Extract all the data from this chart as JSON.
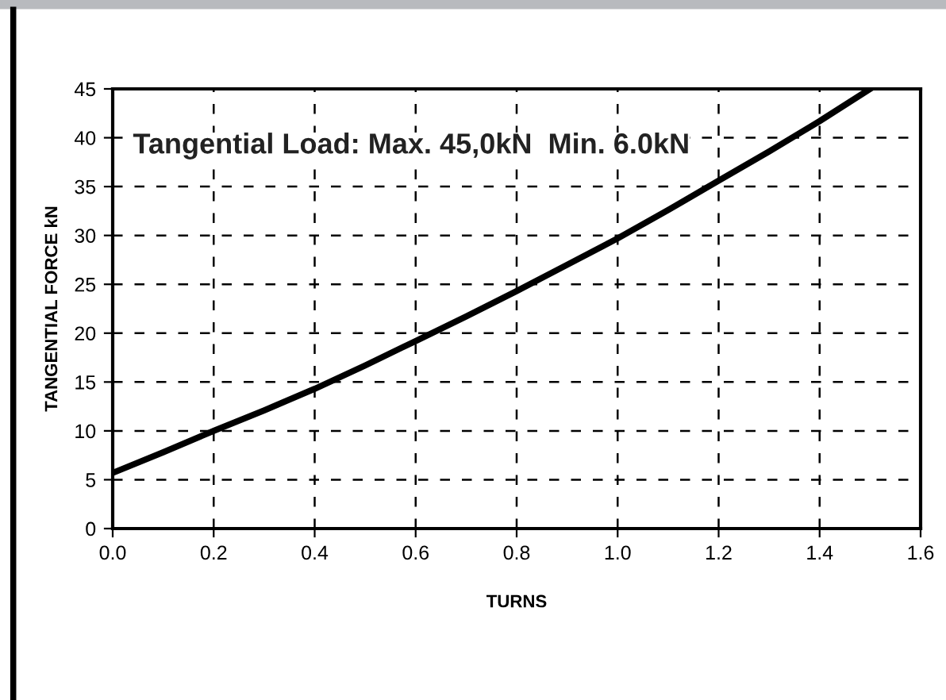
{
  "chart_data": {
    "type": "line",
    "xlabel": "TURNS",
    "ylabel": "TANGENTIAL FORCE kN",
    "annotations": [
      "Tangential Load: Max. 45,0kN  Min. 6.0kN"
    ],
    "x": [
      0,
      0.1,
      0.2,
      0.3,
      0.4,
      0.5,
      0.6,
      0.7,
      0.8,
      0.9,
      1.0,
      1.1,
      1.2,
      1.3,
      1.4,
      1.5
    ],
    "series": [
      {
        "color": "#000000",
        "values": [
          5.7,
          7.8,
          10,
          12.1,
          14.3,
          16.7,
          19.2,
          21.7,
          24.3,
          27,
          29.7,
          32.6,
          35.6,
          38.6,
          41.7,
          45
        ]
      }
    ],
    "xlim": [
      0,
      1.6
    ],
    "xticks": [
      {
        "value": 0,
        "label": "0.0"
      },
      {
        "value": 0.2,
        "label": "0.2"
      },
      {
        "value": 0.4,
        "label": "0.4"
      },
      {
        "value": 0.6,
        "label": "0.6"
      },
      {
        "value": 0.8,
        "label": "0.8"
      },
      {
        "value": 1.0,
        "label": "1.0"
      },
      {
        "value": 1.2,
        "label": "1.2"
      },
      {
        "value": 1.4,
        "label": "1.4"
      },
      {
        "value": 1.6,
        "label": "1.6"
      }
    ],
    "ylim": [
      0,
      45
    ],
    "yticks": [
      0,
      5,
      10,
      15,
      20,
      25,
      30,
      35,
      40,
      45
    ],
    "grid": true,
    "line_style": "solid",
    "marker": "none"
  }
}
